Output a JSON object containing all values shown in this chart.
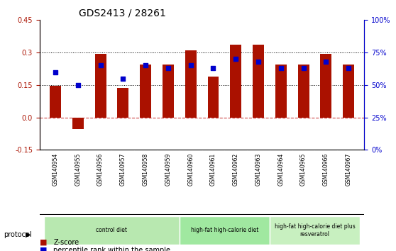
{
  "title": "GDS2413 / 28261",
  "samples": [
    "GSM140954",
    "GSM140955",
    "GSM140956",
    "GSM140957",
    "GSM140958",
    "GSM140959",
    "GSM140960",
    "GSM140961",
    "GSM140962",
    "GSM140963",
    "GSM140964",
    "GSM140965",
    "GSM140966",
    "GSM140967"
  ],
  "zscore": [
    0.147,
    -0.055,
    0.295,
    0.135,
    0.245,
    0.245,
    0.31,
    0.19,
    0.335,
    0.335,
    0.245,
    0.245,
    0.295,
    0.245
  ],
  "percentile": [
    0.6,
    0.5,
    0.65,
    0.55,
    0.65,
    0.63,
    0.65,
    0.63,
    0.7,
    0.68,
    0.63,
    0.63,
    0.68,
    0.63
  ],
  "bar_color": "#aa1100",
  "dot_color": "#0000cc",
  "ylim_left": [
    -0.15,
    0.45
  ],
  "ylim_right": [
    0,
    1.0
  ],
  "yticks_left": [
    -0.15,
    0.0,
    0.15,
    0.3,
    0.45
  ],
  "yticks_right": [
    0,
    0.25,
    0.5,
    0.75,
    1.0
  ],
  "ytick_labels_right": [
    "0%",
    "25%",
    "50%",
    "75%",
    "100%"
  ],
  "hlines": [
    0.15,
    0.3
  ],
  "groups": [
    {
      "label": "control diet",
      "start": 0,
      "end": 6,
      "color": "#b8e8b0"
    },
    {
      "label": "high-fat high-calorie diet",
      "start": 6,
      "end": 10,
      "color": "#a0e8a0"
    },
    {
      "label": "high-fat high-calorie diet plus\nresveratrol",
      "start": 10,
      "end": 14,
      "color": "#c8f0c0"
    }
  ],
  "xlabel": "",
  "legend_zscore": "Z-score",
  "legend_pct": "percentile rank within the sample",
  "protocol_label": "protocol",
  "bg_color": "#ffffff",
  "plot_bg_color": "#ffffff",
  "grid_color": "#cccccc"
}
